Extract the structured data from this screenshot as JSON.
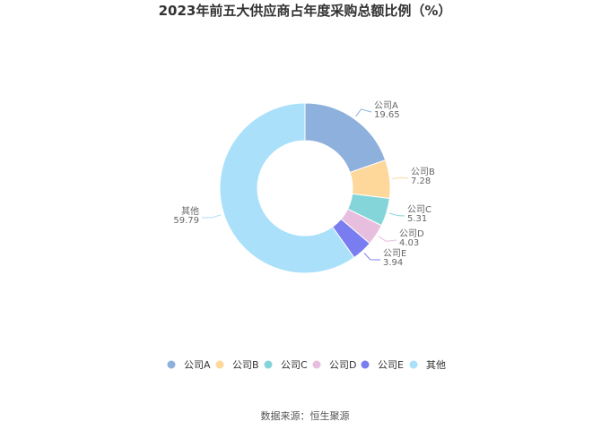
{
  "chart_data": {
    "type": "pie",
    "variant": "donut",
    "title": "2023年前五大供应商占年度采购总额比例（%）",
    "categories": [
      "公司A",
      "公司B",
      "公司C",
      "公司D",
      "公司E",
      "其他"
    ],
    "values": [
      19.65,
      7.28,
      5.31,
      4.03,
      3.94,
      59.79
    ],
    "value_labels": [
      "19.65",
      "7.28",
      "5.31",
      "4.03",
      "3.94",
      "59.79"
    ],
    "colors": [
      "#8eb0dd",
      "#fdd89a",
      "#84d5d9",
      "#e8bedf",
      "#7a7df0",
      "#aae0fa"
    ],
    "legend": {
      "position": "bottom"
    }
  },
  "source": "数据来源：恒生聚源"
}
